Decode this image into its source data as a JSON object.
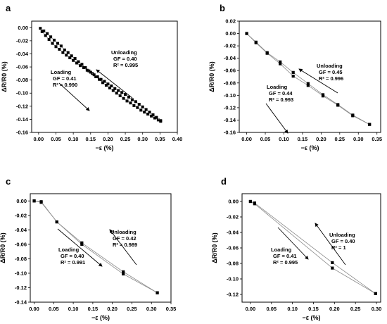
{
  "chart_data": [
    {
      "panel": "a",
      "type": "scatter",
      "xlabel": "−ε (%)",
      "ylabel": "ΔR/R0 (%)",
      "xlim": [
        -0.02,
        0.4
      ],
      "ylim": [
        -0.16,
        0.01
      ],
      "xticks": [
        "0.00",
        "0.05",
        "0.10",
        "0.15",
        "0.20",
        "0.25",
        "0.30",
        "0.35",
        "0.40"
      ],
      "yticks": [
        "0.00",
        "-0.02",
        "-0.04",
        "-0.06",
        "-0.08",
        "-0.10",
        "-0.12",
        "-0.14",
        "-0.16"
      ],
      "series": [
        {
          "role": "loading",
          "x": [
            0.005,
            0.015,
            0.025,
            0.035,
            0.045,
            0.055,
            0.065,
            0.075,
            0.085,
            0.095,
            0.105,
            0.115,
            0.125,
            0.135,
            0.145,
            0.155,
            0.165,
            0.175,
            0.185,
            0.195,
            0.205,
            0.215,
            0.225,
            0.235,
            0.245,
            0.255,
            0.265,
            0.275,
            0.285,
            0.295,
            0.305,
            0.315,
            0.325,
            0.335,
            0.345,
            0.352
          ],
          "y": [
            -0.001,
            -0.005,
            -0.009,
            -0.014,
            -0.019,
            -0.024,
            -0.028,
            -0.034,
            -0.038,
            -0.043,
            -0.047,
            -0.052,
            -0.056,
            -0.061,
            -0.066,
            -0.07,
            -0.075,
            -0.079,
            -0.084,
            -0.088,
            -0.092,
            -0.096,
            -0.1,
            -0.104,
            -0.108,
            -0.112,
            -0.115,
            -0.119,
            -0.122,
            -0.126,
            -0.129,
            -0.132,
            -0.135,
            -0.138,
            -0.141,
            -0.143
          ]
        },
        {
          "role": "unloading",
          "x": [
            0.352,
            0.34,
            0.33,
            0.32,
            0.31,
            0.3,
            0.29,
            0.28,
            0.27,
            0.26,
            0.25,
            0.24,
            0.23,
            0.22,
            0.21,
            0.2,
            0.19,
            0.18,
            0.17,
            0.16,
            0.15,
            0.14,
            0.13,
            0.12,
            0.11,
            0.1,
            0.09,
            0.08,
            0.07,
            0.06,
            0.05,
            0.04,
            0.03,
            0.02,
            0.01
          ],
          "y": [
            -0.142,
            -0.137,
            -0.133,
            -0.129,
            -0.125,
            -0.121,
            -0.117,
            -0.113,
            -0.11,
            -0.106,
            -0.102,
            -0.099,
            -0.096,
            -0.093,
            -0.089,
            -0.086,
            -0.082,
            -0.079,
            -0.075,
            -0.072,
            -0.068,
            -0.065,
            -0.061,
            -0.058,
            -0.054,
            -0.05,
            -0.046,
            -0.042,
            -0.038,
            -0.033,
            -0.029,
            -0.024,
            -0.018,
            -0.012,
            -0.006
          ]
        }
      ],
      "annotations": [
        {
          "lines": [
            "Loading",
            "GF = 0.41",
            "R² = 0.990"
          ]
        },
        {
          "lines": [
            "Unloading",
            "GF = 0.40",
            "R² = 0.995"
          ]
        }
      ]
    },
    {
      "panel": "b",
      "type": "line",
      "xlabel": "−ε (%)",
      "ylabel": "ΔR/R0 (%)",
      "xlim": [
        -0.02,
        0.36
      ],
      "ylim": [
        -0.16,
        0.02
      ],
      "xticks": [
        "0.00",
        "0.05",
        "0.10",
        "0.15",
        "0.20",
        "0.25",
        "0.30",
        "0.35"
      ],
      "yticks": [
        "0.02",
        "0.00",
        "-0.02",
        "-0.04",
        "-0.06",
        "-0.08",
        "-0.10",
        "-0.12",
        "-0.14",
        "-0.16"
      ],
      "series": [
        {
          "role": "loading",
          "x": [
            0.0,
            0.025,
            0.055,
            0.09,
            0.125,
            0.165,
            0.205,
            0.245,
            0.285,
            0.33
          ],
          "y": [
            0.0,
            -0.014,
            -0.031,
            -0.046,
            -0.063,
            -0.081,
            -0.099,
            -0.115,
            -0.132,
            -0.147
          ]
        },
        {
          "role": "unloading",
          "x": [
            0.33,
            0.285,
            0.245,
            0.205,
            0.165,
            0.125,
            0.09,
            0.055,
            0.025,
            0.0
          ],
          "y": [
            -0.147,
            -0.133,
            -0.116,
            -0.101,
            -0.084,
            -0.069,
            -0.049,
            -0.032,
            -0.015,
            0.0
          ]
        }
      ],
      "annotations": [
        {
          "lines": [
            "Loading",
            "GF = 0.44",
            "R² = 0.993"
          ]
        },
        {
          "lines": [
            "Unloading",
            "GF = 0.45",
            "R² = 0.996"
          ]
        }
      ]
    },
    {
      "panel": "c",
      "type": "line",
      "xlabel": "−ε (%)",
      "ylabel": "ΔR/R0 (%)",
      "xlim": [
        -0.01,
        0.35
      ],
      "ylim": [
        -0.14,
        0.01
      ],
      "xticks": [
        "0.00",
        "0.05",
        "0.10",
        "0.15",
        "0.20",
        "0.25",
        "0.30",
        "0.35"
      ],
      "yticks": [
        "0.00",
        "-0.02",
        "-0.04",
        "-0.06",
        "-0.08",
        "-0.10",
        "-0.12",
        "-0.14"
      ],
      "series": [
        {
          "role": "loading",
          "x": [
            0.0,
            0.018,
            0.058,
            0.122,
            0.228,
            0.315
          ],
          "y": [
            0.0,
            -0.002,
            -0.029,
            -0.06,
            -0.101,
            -0.127
          ]
        },
        {
          "role": "unloading",
          "x": [
            0.315,
            0.228,
            0.122,
            0.058,
            0.018,
            0.0
          ],
          "y": [
            -0.127,
            -0.098,
            -0.058,
            -0.029,
            -0.001,
            0.0
          ]
        }
      ],
      "annotations": [
        {
          "lines": [
            "Loading",
            "GF = 0.40",
            "R² = 0.991"
          ]
        },
        {
          "lines": [
            "Unloading",
            "GF = 0.42",
            "R² = 0.989"
          ]
        }
      ]
    },
    {
      "panel": "d",
      "type": "line",
      "xlabel": "−ε (%)",
      "ylabel": "ΔR/R0 (%)",
      "xlim": [
        -0.02,
        0.31
      ],
      "ylim": [
        -0.13,
        0.01
      ],
      "xticks": [
        "0.00",
        "0.05",
        "0.10",
        "0.15",
        "0.20",
        "0.25",
        "0.30"
      ],
      "yticks": [
        "0.00",
        "-0.02",
        "-0.04",
        "-0.06",
        "-0.08",
        "-0.10",
        "-0.12"
      ],
      "series": [
        {
          "role": "loading",
          "x": [
            0.0,
            0.01,
            0.195,
            0.298
          ],
          "y": [
            0.0,
            -0.003,
            -0.086,
            -0.119
          ]
        },
        {
          "role": "unloading",
          "x": [
            0.298,
            0.195,
            0.01,
            0.0
          ],
          "y": [
            -0.119,
            -0.079,
            -0.002,
            0.0
          ]
        }
      ],
      "annotations": [
        {
          "lines": [
            "Loading",
            "GF = 0.41",
            "R² = 0.995"
          ]
        },
        {
          "lines": [
            "Unloading",
            "GF = 0.40",
            "R² = 1"
          ]
        }
      ]
    }
  ]
}
